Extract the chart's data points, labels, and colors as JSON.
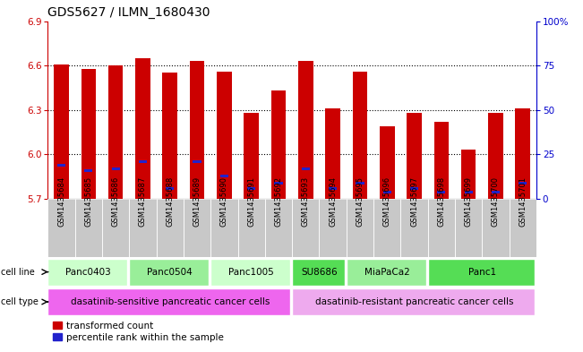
{
  "title": "GDS5627 / ILMN_1680430",
  "samples": [
    "GSM1435684",
    "GSM1435685",
    "GSM1435686",
    "GSM1435687",
    "GSM1435688",
    "GSM1435689",
    "GSM1435690",
    "GSM1435691",
    "GSM1435692",
    "GSM1435693",
    "GSM1435694",
    "GSM1435695",
    "GSM1435696",
    "GSM1435697",
    "GSM1435698",
    "GSM1435699",
    "GSM1435700",
    "GSM1435701"
  ],
  "transformed_count": [
    6.61,
    6.58,
    6.6,
    6.65,
    6.55,
    6.63,
    6.56,
    6.28,
    6.43,
    6.63,
    6.31,
    6.56,
    6.19,
    6.28,
    6.22,
    6.03,
    6.28,
    6.31
  ],
  "percentile_rank": [
    18,
    15,
    16,
    20,
    5,
    20,
    12,
    5,
    8,
    16,
    5,
    8,
    3,
    5,
    3,
    3,
    3,
    8
  ],
  "ylim_left": [
    5.7,
    6.9
  ],
  "ylim_right": [
    0,
    100
  ],
  "yticks_left": [
    5.7,
    6.0,
    6.3,
    6.6,
    6.9
  ],
  "yticks_right": [
    0,
    25,
    50,
    75,
    100
  ],
  "ytick_labels_right": [
    "0",
    "25",
    "50",
    "75",
    "100%"
  ],
  "bar_base": 5.7,
  "bar_color_red": "#cc0000",
  "bar_color_blue": "#2222cc",
  "cell_lines": [
    {
      "label": "Panc0403",
      "start": 0,
      "end": 3,
      "color": "#ccffcc"
    },
    {
      "label": "Panc0504",
      "start": 3,
      "end": 6,
      "color": "#99ee99"
    },
    {
      "label": "Panc1005",
      "start": 6,
      "end": 9,
      "color": "#ccffcc"
    },
    {
      "label": "SU8686",
      "start": 9,
      "end": 11,
      "color": "#55dd55"
    },
    {
      "label": "MiaPaCa2",
      "start": 11,
      "end": 14,
      "color": "#99ee99"
    },
    {
      "label": "Panc1",
      "start": 14,
      "end": 18,
      "color": "#55dd55"
    }
  ],
  "cell_types": [
    {
      "label": "dasatinib-sensitive pancreatic cancer cells",
      "start": 0,
      "end": 9,
      "color": "#ee66ee"
    },
    {
      "label": "dasatinib-resistant pancreatic cancer cells",
      "start": 9,
      "end": 18,
      "color": "#eeaaee"
    }
  ],
  "legend_items": [
    {
      "color": "#cc0000",
      "label": "transformed count"
    },
    {
      "color": "#2222cc",
      "label": "percentile rank within the sample"
    }
  ],
  "bar_width": 0.55,
  "left_tick_color": "#cc0000",
  "right_tick_color": "#0000cc",
  "title_fontsize": 10,
  "tick_fontsize": 7.5,
  "label_fontsize": 8,
  "sample_label_fontsize": 6,
  "legend_fontsize": 7.5
}
